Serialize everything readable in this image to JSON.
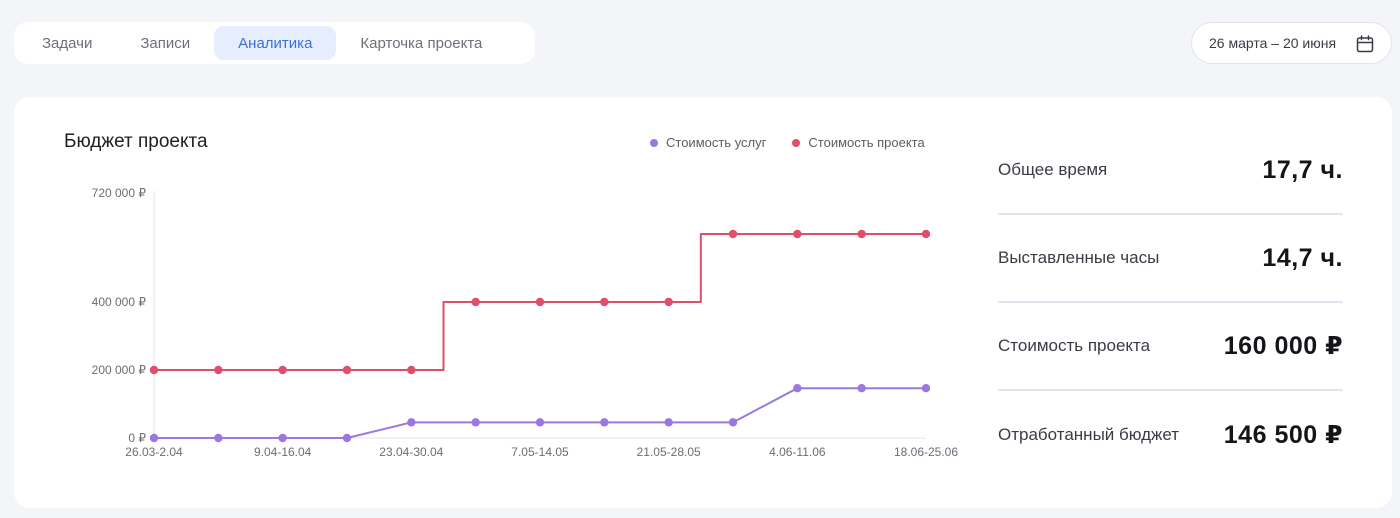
{
  "tabs": [
    {
      "label": "Задачи",
      "active": false
    },
    {
      "label": "Записи",
      "active": false
    },
    {
      "label": "Аналитика",
      "active": true
    },
    {
      "label": "Карточка проекта",
      "active": false
    }
  ],
  "date_range": {
    "label": "26 марта – 20 июня",
    "icon": "calendar-icon"
  },
  "chart": {
    "title": "Бюджет проекта",
    "legend": [
      {
        "name": "Стоимость услуг",
        "color": "#9b78e0"
      },
      {
        "name": "Стоимость проекта",
        "color": "#de4f6c"
      }
    ]
  },
  "chart_data": {
    "type": "line",
    "title": "Бюджет проекта",
    "ylim": [
      0,
      720000
    ],
    "y_ticks": [
      {
        "value": 0,
        "label": "0 ₽"
      },
      {
        "value": 200000,
        "label": "200 000 ₽"
      },
      {
        "value": 400000,
        "label": "400 000 ₽"
      },
      {
        "value": 720000,
        "label": "720 000 ₽"
      }
    ],
    "x_labels": [
      {
        "index": 0,
        "label": "26.03-2.04"
      },
      {
        "index": 2,
        "label": "9.04-16.04"
      },
      {
        "index": 4,
        "label": "23.04-30.04"
      },
      {
        "index": 6,
        "label": "7.05-14.05"
      },
      {
        "index": 8,
        "label": "21.05-28.05"
      },
      {
        "index": 10,
        "label": "4.06-11.06"
      },
      {
        "index": 12,
        "label": "18.06-25.06"
      }
    ],
    "point_count": 13,
    "series": [
      {
        "name": "Стоимость проекта",
        "color": "#de4f6c",
        "step": true,
        "values": [
          200000,
          200000,
          200000,
          200000,
          200000,
          400000,
          400000,
          400000,
          400000,
          600000,
          600000,
          600000,
          600000
        ]
      },
      {
        "name": "Стоимость услуг",
        "color": "#9b78e0",
        "step": false,
        "values": [
          0,
          0,
          0,
          0,
          46000,
          46000,
          46000,
          46000,
          46000,
          46000,
          146500,
          146500,
          146500
        ]
      }
    ]
  },
  "stats": [
    {
      "label": "Общее время",
      "value": "17,7 ч."
    },
    {
      "label": "Выставленные часы",
      "value": "14,7 ч."
    },
    {
      "label": "Стоимость проекта",
      "value": "160 000 ₽"
    },
    {
      "label": "Отработанный бюджет",
      "value": "146 500 ₽"
    }
  ]
}
